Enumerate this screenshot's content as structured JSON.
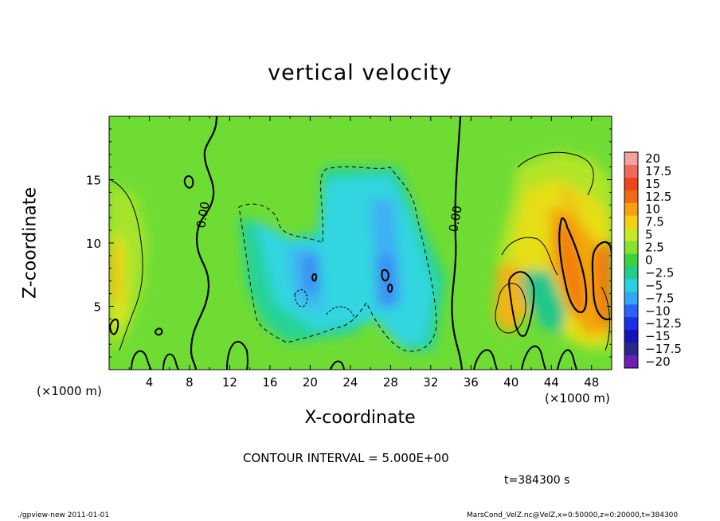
{
  "chart_data": {
    "type": "heatmap",
    "title": "vertical velocity",
    "xlabel": "X-coordinate",
    "ylabel": "Z-coordinate",
    "x_unit_label": "(×1000 m)",
    "xlim": [
      0,
      50
    ],
    "ylim": [
      0,
      20
    ],
    "x_ticks": [
      4,
      8,
      12,
      16,
      20,
      24,
      28,
      32,
      36,
      40,
      44,
      48
    ],
    "y_ticks": [
      5,
      10,
      15
    ],
    "colorbar": {
      "levels": [
        "20",
        "17.5",
        "15",
        "12.5",
        "10",
        "7.5",
        "5",
        "2.5",
        "0",
        "-2.5",
        "-5",
        "-7.5",
        "-10",
        "-12.5",
        "-15",
        "-17.5",
        "-20"
      ],
      "colors": [
        "#f7a0a0",
        "#f06a5a",
        "#f0441c",
        "#f06a14",
        "#f6a20e",
        "#f7d012",
        "#c8e828",
        "#88e030",
        "#3cd23c",
        "#22cc8c",
        "#28d2dc",
        "#34a6f6",
        "#2862f6",
        "#1c2ee6",
        "#1414b8",
        "#282888",
        "#6e1eb4"
      ]
    },
    "contour_interval": "CONTOUR INTERVAL = 5.000E+00",
    "contour_label": "0.00",
    "time": "t=384300 s"
  },
  "footer": {
    "left": "./gpview-new   2011-01-01",
    "right": "MarsCond_VelZ.nc@VelZ,x=0:50000,z=0:20000,t=384300"
  }
}
